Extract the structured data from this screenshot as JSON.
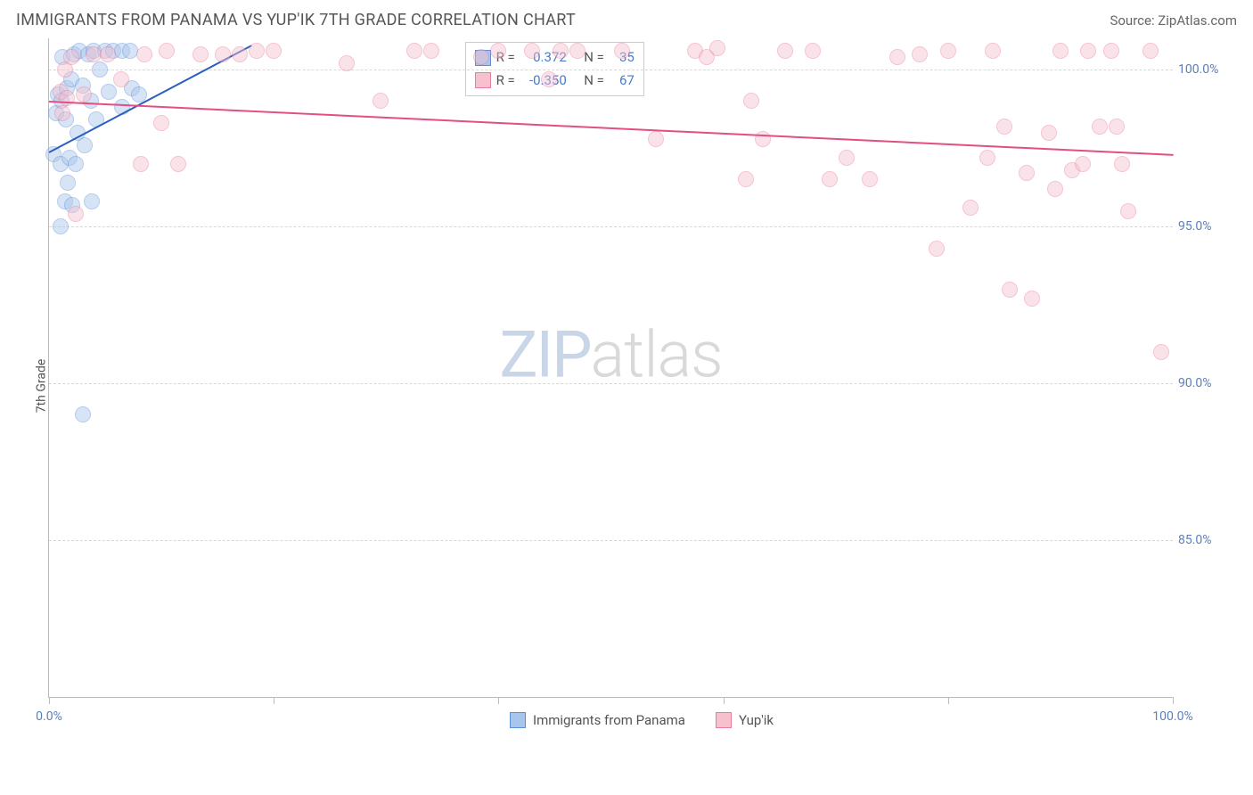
{
  "title": "IMMIGRANTS FROM PANAMA VS YUP'IK 7TH GRADE CORRELATION CHART",
  "source": "Source: ZipAtlas.com",
  "ylabel": "7th Grade",
  "watermark": {
    "part1": "ZIP",
    "part2": "atlas"
  },
  "chart": {
    "type": "scatter",
    "background_color": "#ffffff",
    "grid_color": "#d8d8d8",
    "axis_color": "#bbbbbb",
    "tick_label_color": "#5b7fb8",
    "xlim": [
      0,
      100
    ],
    "ylim": [
      80,
      101
    ],
    "yticks": [
      {
        "value": 100,
        "label": "100.0%"
      },
      {
        "value": 95,
        "label": "95.0%"
      },
      {
        "value": 90,
        "label": "90.0%"
      },
      {
        "value": 85,
        "label": "85.0%"
      }
    ],
    "xticks": [
      0,
      20,
      40,
      60,
      80,
      100
    ],
    "xtick_labels": {
      "0": "0.0%",
      "100": "100.0%"
    },
    "marker_radius": 9,
    "marker_opacity": 0.45,
    "series": [
      {
        "name": "Immigrants from Panama",
        "color_fill": "#a8c5ec",
        "color_stroke": "#5b8fd6",
        "R": "0.372",
        "N": "35",
        "trend": {
          "x1": 0,
          "y1": 97.4,
          "x2": 18,
          "y2": 100.8,
          "color": "#2a5fc1",
          "width": 2
        },
        "points": [
          [
            0.4,
            97.3
          ],
          [
            0.6,
            98.6
          ],
          [
            0.8,
            99.2
          ],
          [
            1.0,
            97.0
          ],
          [
            1.1,
            99.0
          ],
          [
            1.2,
            100.4
          ],
          [
            1.4,
            95.8
          ],
          [
            1.5,
            98.4
          ],
          [
            1.6,
            99.4
          ],
          [
            1.7,
            96.4
          ],
          [
            1.8,
            97.2
          ],
          [
            2.0,
            99.7
          ],
          [
            2.1,
            95.7
          ],
          [
            2.2,
            100.5
          ],
          [
            2.4,
            97.0
          ],
          [
            2.5,
            98.0
          ],
          [
            2.7,
            100.6
          ],
          [
            3.0,
            99.5
          ],
          [
            3.2,
            97.6
          ],
          [
            3.5,
            100.5
          ],
          [
            3.7,
            99.0
          ],
          [
            4.0,
            100.6
          ],
          [
            4.2,
            98.4
          ],
          [
            4.5,
            100.0
          ],
          [
            3.0,
            89.0
          ],
          [
            5.0,
            100.6
          ],
          [
            5.3,
            99.3
          ],
          [
            5.7,
            100.6
          ],
          [
            6.5,
            100.6
          ],
          [
            6.5,
            98.8
          ],
          [
            7.2,
            100.6
          ],
          [
            7.4,
            99.4
          ],
          [
            8.0,
            99.2
          ],
          [
            3.8,
            95.8
          ],
          [
            1.0,
            95.0
          ]
        ]
      },
      {
        "name": "Yup'ik",
        "color_fill": "#f6c0cf",
        "color_stroke": "#e87da0",
        "R": "-0.350",
        "N": "67",
        "trend": {
          "x1": 0,
          "y1": 99.0,
          "x2": 100,
          "y2": 97.3,
          "color": "#e24f82",
          "width": 2
        },
        "points": [
          [
            1.0,
            99.3
          ],
          [
            1.2,
            98.6
          ],
          [
            1.4,
            100.0
          ],
          [
            1.6,
            99.1
          ],
          [
            2.0,
            100.4
          ],
          [
            2.4,
            95.4
          ],
          [
            3.1,
            99.2
          ],
          [
            4.0,
            100.5
          ],
          [
            5.2,
            100.5
          ],
          [
            6.4,
            99.7
          ],
          [
            8.2,
            97.0
          ],
          [
            8.5,
            100.5
          ],
          [
            10.0,
            98.3
          ],
          [
            10.5,
            100.6
          ],
          [
            11.5,
            97.0
          ],
          [
            13.5,
            100.5
          ],
          [
            15.5,
            100.5
          ],
          [
            17.0,
            100.5
          ],
          [
            18.5,
            100.6
          ],
          [
            20.0,
            100.6
          ],
          [
            26.5,
            100.2
          ],
          [
            29.5,
            99.0
          ],
          [
            32.5,
            100.6
          ],
          [
            34.0,
            100.6
          ],
          [
            38.5,
            100.4
          ],
          [
            40.0,
            100.6
          ],
          [
            43.0,
            100.6
          ],
          [
            44.5,
            99.7
          ],
          [
            45.5,
            100.6
          ],
          [
            47.0,
            100.6
          ],
          [
            51.0,
            100.6
          ],
          [
            54.0,
            97.8
          ],
          [
            57.5,
            100.6
          ],
          [
            58.5,
            100.4
          ],
          [
            59.5,
            100.7
          ],
          [
            62.0,
            96.5
          ],
          [
            62.5,
            99.0
          ],
          [
            63.5,
            97.8
          ],
          [
            65.5,
            100.6
          ],
          [
            68.0,
            100.6
          ],
          [
            69.5,
            96.5
          ],
          [
            71.0,
            97.2
          ],
          [
            73.0,
            96.5
          ],
          [
            75.5,
            100.4
          ],
          [
            77.5,
            100.5
          ],
          [
            79.0,
            94.3
          ],
          [
            80.0,
            100.6
          ],
          [
            82.0,
            95.6
          ],
          [
            83.5,
            97.2
          ],
          [
            84.0,
            100.6
          ],
          [
            85.0,
            98.2
          ],
          [
            85.5,
            93.0
          ],
          [
            87.0,
            96.7
          ],
          [
            87.5,
            92.7
          ],
          [
            89.0,
            98.0
          ],
          [
            89.5,
            96.2
          ],
          [
            90.0,
            100.6
          ],
          [
            91.0,
            96.8
          ],
          [
            92.0,
            97.0
          ],
          [
            92.5,
            100.6
          ],
          [
            93.5,
            98.2
          ],
          [
            94.5,
            100.6
          ],
          [
            95.0,
            98.2
          ],
          [
            95.5,
            97.0
          ],
          [
            96.0,
            95.5
          ],
          [
            98.0,
            100.6
          ],
          [
            99.0,
            91.0
          ]
        ]
      }
    ]
  },
  "legend_stats": {
    "R_prefix": "R =",
    "N_prefix": "N ="
  }
}
